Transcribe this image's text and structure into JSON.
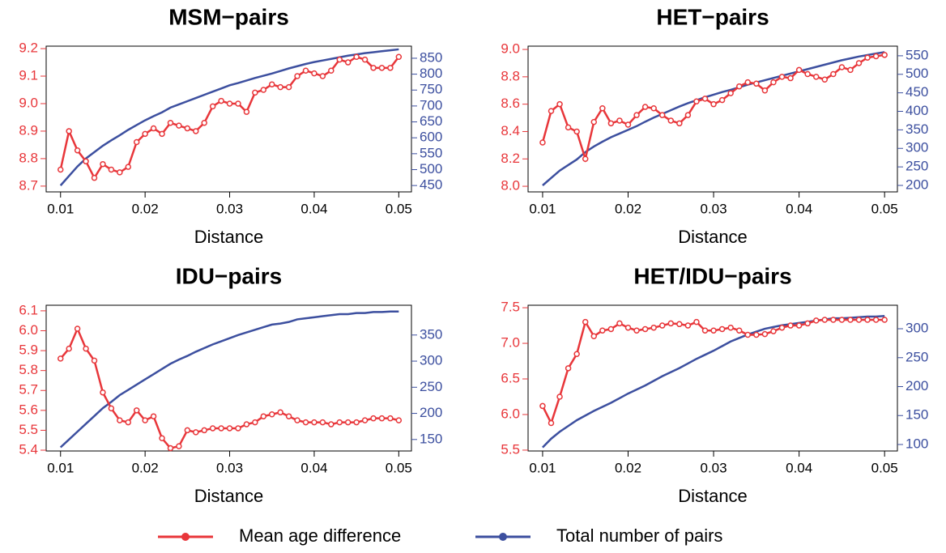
{
  "chart_data": [
    {
      "type": "line",
      "title": "MSM−pairs",
      "x_label": "Distance",
      "x": [
        0.01,
        0.011,
        0.012,
        0.013,
        0.014,
        0.015,
        0.016,
        0.017,
        0.018,
        0.019,
        0.02,
        0.021,
        0.022,
        0.023,
        0.024,
        0.025,
        0.026,
        0.027,
        0.028,
        0.029,
        0.03,
        0.031,
        0.032,
        0.033,
        0.034,
        0.035,
        0.036,
        0.037,
        0.038,
        0.039,
        0.04,
        0.041,
        0.042,
        0.043,
        0.044,
        0.045,
        0.046,
        0.047,
        0.048,
        0.049,
        0.05
      ],
      "series": [
        {
          "name": "Mean age difference",
          "color": "#e8363a",
          "values": [
            8.76,
            8.9,
            8.83,
            8.79,
            8.73,
            8.78,
            8.76,
            8.75,
            8.77,
            8.86,
            8.89,
            8.91,
            8.89,
            8.93,
            8.92,
            8.91,
            8.9,
            8.93,
            8.99,
            9.01,
            9.0,
            9.0,
            8.97,
            9.04,
            9.05,
            9.07,
            9.06,
            9.06,
            9.1,
            9.12,
            9.11,
            9.1,
            9.12,
            9.16,
            9.15,
            9.17,
            9.16,
            9.13,
            9.13,
            9.13,
            9.17
          ]
        },
        {
          "name": "Total number of pairs",
          "color": "#3c4f9f",
          "axis": "y2",
          "values": [
            450,
            480,
            510,
            535,
            555,
            575,
            592,
            608,
            625,
            640,
            655,
            668,
            680,
            695,
            705,
            715,
            725,
            735,
            745,
            755,
            765,
            772,
            780,
            788,
            795,
            802,
            810,
            818,
            825,
            832,
            838,
            843,
            848,
            853,
            858,
            862,
            866,
            869,
            872,
            875,
            878
          ]
        }
      ],
      "xlim": [
        0.0083,
        0.0515
      ],
      "xticks": [
        0.01,
        0.02,
        0.03,
        0.04,
        0.05
      ],
      "ylim": [
        8.679,
        9.209
      ],
      "yticks": [
        8.7,
        8.8,
        8.9,
        {
          "value": 9,
          "label": "9.0"
        },
        9.1,
        9.2
      ],
      "y2lim": [
        430,
        888
      ],
      "y2ticks": [
        450,
        500,
        550,
        600,
        650,
        700,
        750,
        800,
        850
      ]
    },
    {
      "type": "line",
      "title": "HET−pairs",
      "x_label": "Distance",
      "x": [
        0.01,
        0.011,
        0.012,
        0.013,
        0.014,
        0.015,
        0.016,
        0.017,
        0.018,
        0.019,
        0.02,
        0.021,
        0.022,
        0.023,
        0.024,
        0.025,
        0.026,
        0.027,
        0.028,
        0.029,
        0.03,
        0.031,
        0.032,
        0.033,
        0.034,
        0.035,
        0.036,
        0.037,
        0.038,
        0.039,
        0.04,
        0.041,
        0.042,
        0.043,
        0.044,
        0.045,
        0.046,
        0.047,
        0.048,
        0.049,
        0.05
      ],
      "series": [
        {
          "name": "Mean age difference",
          "color": "#e8363a",
          "values": [
            8.32,
            8.55,
            8.6,
            8.43,
            8.4,
            8.2,
            8.47,
            8.57,
            8.46,
            8.48,
            8.45,
            8.52,
            8.58,
            8.57,
            8.52,
            8.48,
            8.46,
            8.52,
            8.62,
            8.64,
            8.6,
            8.63,
            8.68,
            8.73,
            8.76,
            8.75,
            8.7,
            8.76,
            8.8,
            8.79,
            8.85,
            8.82,
            8.8,
            8.78,
            8.82,
            8.87,
            8.85,
            8.9,
            8.94,
            8.95,
            8.96
          ]
        },
        {
          "name": "Total number of pairs",
          "color": "#3c4f9f",
          "axis": "y2",
          "values": [
            200,
            220,
            240,
            255,
            270,
            290,
            305,
            318,
            330,
            340,
            350,
            360,
            372,
            383,
            393,
            403,
            413,
            422,
            430,
            438,
            445,
            452,
            458,
            465,
            472,
            478,
            484,
            490,
            496,
            502,
            508,
            514,
            520,
            526,
            532,
            538,
            543,
            548,
            552,
            556,
            560
          ]
        }
      ],
      "xlim": [
        0.0083,
        0.0515
      ],
      "xticks": [
        0.01,
        0.02,
        0.03,
        0.04,
        0.05
      ],
      "ylim": [
        7.959,
        9.024
      ],
      "yticks": [
        {
          "value": 8,
          "label": "8.0"
        },
        8.2,
        8.4,
        8.6,
        8.8,
        {
          "value": 9,
          "label": "9.0"
        }
      ],
      "y2lim": [
        182.5,
        576
      ],
      "y2ticks": [
        200,
        250,
        300,
        350,
        400,
        450,
        500,
        550
      ]
    },
    {
      "type": "line",
      "title": "IDU−pairs",
      "x_label": "Distance",
      "x": [
        0.01,
        0.011,
        0.012,
        0.013,
        0.014,
        0.015,
        0.016,
        0.017,
        0.018,
        0.019,
        0.02,
        0.021,
        0.022,
        0.023,
        0.024,
        0.025,
        0.026,
        0.027,
        0.028,
        0.029,
        0.03,
        0.031,
        0.032,
        0.033,
        0.034,
        0.035,
        0.036,
        0.037,
        0.038,
        0.039,
        0.04,
        0.041,
        0.042,
        0.043,
        0.044,
        0.045,
        0.046,
        0.047,
        0.048,
        0.049,
        0.05
      ],
      "series": [
        {
          "name": "Mean age difference",
          "color": "#e8363a",
          "values": [
            5.86,
            5.91,
            6.01,
            5.91,
            5.85,
            5.69,
            5.61,
            5.55,
            5.54,
            5.6,
            5.55,
            5.57,
            5.46,
            5.41,
            5.42,
            5.5,
            5.49,
            5.5,
            5.51,
            5.51,
            5.51,
            5.51,
            5.53,
            5.54,
            5.57,
            5.58,
            5.59,
            5.57,
            5.55,
            5.54,
            5.54,
            5.54,
            5.53,
            5.54,
            5.54,
            5.54,
            5.55,
            5.56,
            5.56,
            5.56,
            5.55
          ]
        },
        {
          "name": "Total number of pairs",
          "color": "#3c4f9f",
          "axis": "y2",
          "values": [
            135,
            150,
            165,
            180,
            195,
            210,
            222,
            235,
            245,
            255,
            265,
            275,
            285,
            295,
            303,
            310,
            318,
            325,
            332,
            338,
            344,
            350,
            355,
            360,
            365,
            370,
            372,
            375,
            380,
            382,
            384,
            386,
            388,
            390,
            390,
            392,
            392,
            394,
            394,
            395,
            395
          ]
        }
      ],
      "xlim": [
        0.0083,
        0.0515
      ],
      "xticks": [
        0.01,
        0.02,
        0.03,
        0.04,
        0.05
      ],
      "ylim": [
        5.396,
        6.128
      ],
      "yticks": [
        5.4,
        5.5,
        5.6,
        5.7,
        5.8,
        5.9,
        {
          "value": 6,
          "label": "6.0"
        },
        6.1
      ],
      "y2lim": [
        128,
        407
      ],
      "y2ticks": [
        150,
        200,
        250,
        300,
        350
      ]
    },
    {
      "type": "line",
      "title": "HET/IDU−pairs",
      "x_label": "Distance",
      "x": [
        0.01,
        0.011,
        0.012,
        0.013,
        0.014,
        0.015,
        0.016,
        0.017,
        0.018,
        0.019,
        0.02,
        0.021,
        0.022,
        0.023,
        0.024,
        0.025,
        0.026,
        0.027,
        0.028,
        0.029,
        0.03,
        0.031,
        0.032,
        0.033,
        0.034,
        0.035,
        0.036,
        0.037,
        0.038,
        0.039,
        0.04,
        0.041,
        0.042,
        0.043,
        0.044,
        0.045,
        0.046,
        0.047,
        0.048,
        0.049,
        0.05
      ],
      "series": [
        {
          "name": "Mean age difference",
          "color": "#e8363a",
          "values": [
            6.12,
            5.88,
            6.25,
            6.65,
            6.85,
            7.3,
            7.1,
            7.18,
            7.2,
            7.28,
            7.22,
            7.18,
            7.2,
            7.22,
            7.25,
            7.28,
            7.27,
            7.25,
            7.3,
            7.18,
            7.18,
            7.2,
            7.22,
            7.18,
            7.12,
            7.12,
            7.13,
            7.17,
            7.22,
            7.25,
            7.25,
            7.28,
            7.32,
            7.33,
            7.33,
            7.33,
            7.33,
            7.33,
            7.33,
            7.33,
            7.33
          ]
        },
        {
          "name": "Total number of pairs",
          "color": "#3c4f9f",
          "axis": "y2",
          "values": [
            95,
            110,
            122,
            132,
            142,
            150,
            158,
            165,
            172,
            180,
            188,
            195,
            202,
            210,
            218,
            225,
            232,
            240,
            248,
            255,
            262,
            270,
            278,
            284,
            290,
            295,
            300,
            303,
            306,
            308,
            310,
            312,
            314,
            316,
            318,
            318,
            319,
            320,
            321,
            321,
            322
          ]
        }
      ],
      "xlim": [
        0.0083,
        0.0515
      ],
      "xticks": [
        0.01,
        0.02,
        0.03,
        0.04,
        0.05
      ],
      "ylim": [
        5.488,
        7.535
      ],
      "yticks": [
        5.5,
        {
          "value": 6,
          "label": "6.0"
        },
        6.5,
        {
          "value": 7,
          "label": "7.0"
        },
        7.5
      ],
      "y2lim": [
        88.8,
        340.6
      ],
      "y2ticks": [
        100,
        150,
        200,
        250,
        300
      ]
    }
  ]
}
